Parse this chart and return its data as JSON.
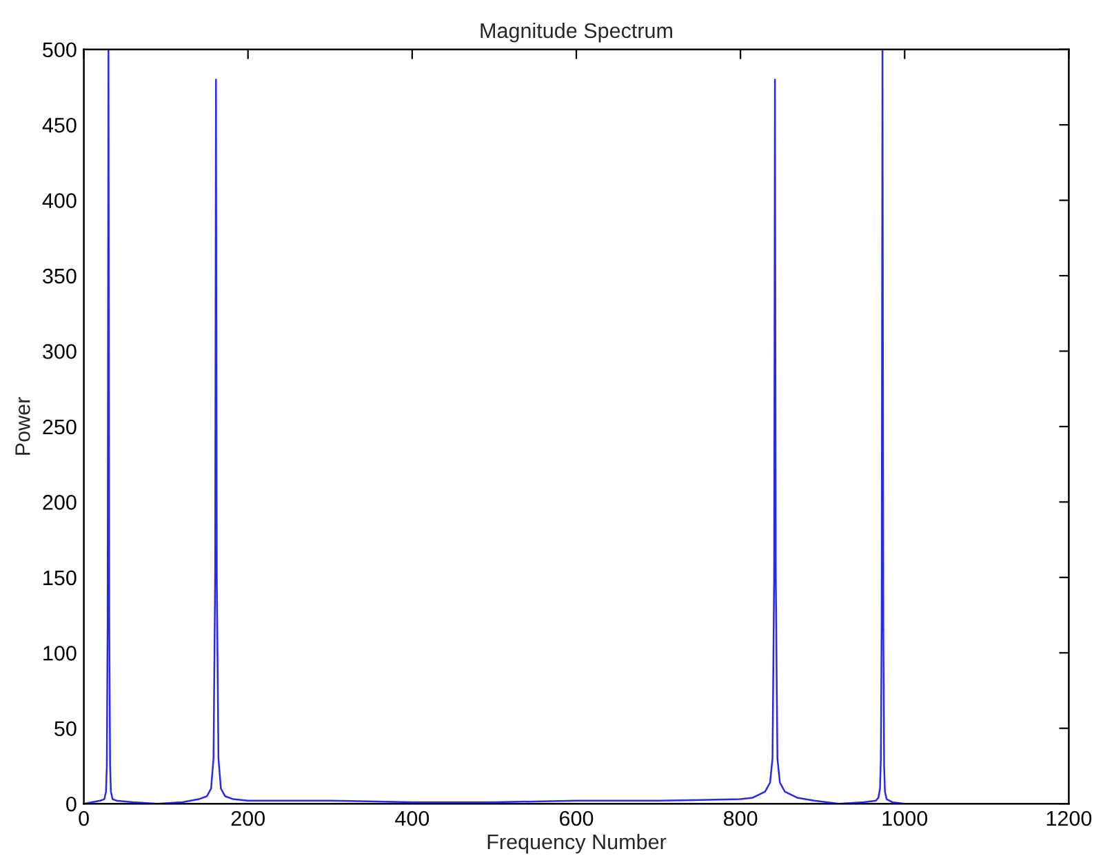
{
  "chart_data": {
    "type": "line",
    "title": "Magnitude Spectrum",
    "xlabel": "Frequency Number",
    "ylabel": "Power",
    "series": [
      {
        "color": "#2a2ae6",
        "x": [
          0,
          10,
          20,
          25,
          27,
          28,
          29,
          30,
          31,
          32,
          33,
          35,
          40,
          60,
          90,
          120,
          140,
          150,
          155,
          158,
          160,
          161,
          162,
          164,
          167,
          172,
          182,
          200,
          300,
          400,
          500,
          600,
          700,
          800,
          815,
          830,
          836,
          839,
          841,
          842,
          843,
          845,
          848,
          854,
          869,
          890,
          920,
          950,
          965,
          968,
          970,
          971,
          972,
          973,
          974,
          975,
          976,
          978,
          985,
          1000
        ],
        "values": [
          0,
          1,
          2,
          3,
          8,
          25,
          120,
          500,
          120,
          25,
          8,
          3,
          2,
          1,
          0,
          1,
          3,
          5,
          10,
          30,
          150,
          480,
          150,
          30,
          10,
          5,
          3,
          2,
          2,
          1,
          1,
          2,
          2,
          3,
          4,
          8,
          14,
          30,
          150,
          480,
          150,
          30,
          14,
          8,
          4,
          2,
          0,
          1,
          2,
          4,
          10,
          30,
          120,
          500,
          120,
          25,
          8,
          3,
          1,
          0
        ]
      }
    ],
    "xlim": [
      0,
      1200
    ],
    "xticks": [
      0,
      200,
      400,
      600,
      800,
      1000,
      1200
    ],
    "ylim": [
      0,
      500
    ],
    "yticks": [
      0,
      50,
      100,
      150,
      200,
      250,
      300,
      350,
      400,
      450,
      500
    ],
    "grid": false
  }
}
